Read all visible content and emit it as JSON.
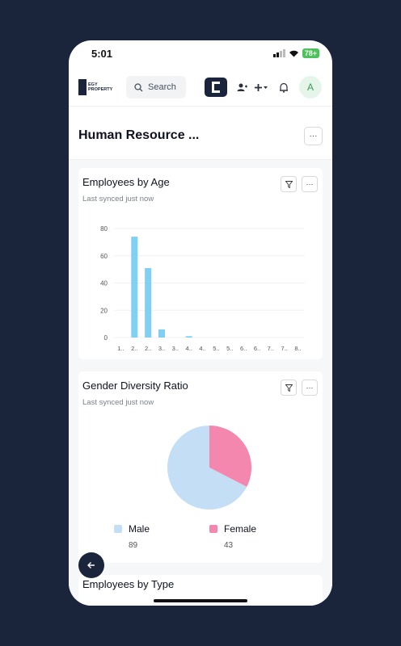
{
  "status": {
    "time": "5:01",
    "battery": "78+"
  },
  "topbar": {
    "logo_text": "EGY\nPROPERTY",
    "search_placeholder": "Search",
    "avatar_initial": "A"
  },
  "dashboard": {
    "title": "Human Resource ...",
    "more": "···"
  },
  "cards": [
    {
      "title": "Employees by Age",
      "subtitle": "Last synced just now"
    },
    {
      "title": "Gender Diversity Ratio",
      "subtitle": "Last synced just now"
    },
    {
      "title": "Employees by Type"
    }
  ],
  "chart_data": [
    {
      "type": "bar",
      "categories": [
        "1..",
        "2..",
        "2..",
        "3..",
        "3..",
        "4..",
        "4..",
        "5..",
        "5..",
        "6..",
        "6..",
        "7..",
        "7..",
        "8.."
      ],
      "values": [
        0,
        74,
        51,
        6,
        0,
        1,
        0,
        0,
        0,
        0,
        0,
        0,
        0,
        0
      ],
      "ylim": [
        0,
        80
      ],
      "yticks": [
        0,
        20,
        40,
        60,
        80
      ],
      "color": "#7fd0f2"
    },
    {
      "type": "pie",
      "slices": [
        {
          "label": "Male",
          "value": 89,
          "color": "#c3def5"
        },
        {
          "label": "Female",
          "value": 43,
          "color": "#f487ad"
        }
      ]
    }
  ]
}
